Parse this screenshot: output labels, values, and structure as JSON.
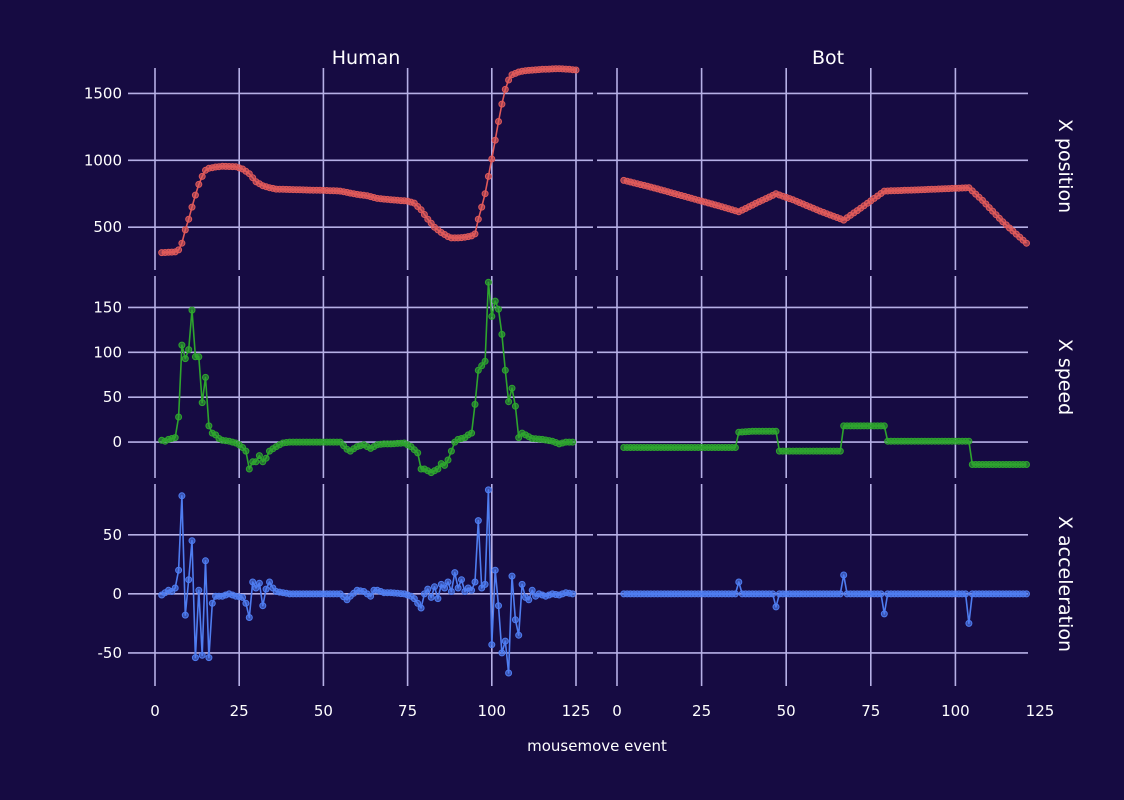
{
  "chart_data": {
    "type": "line",
    "xlabel": "mousemove event",
    "xlim": [
      0,
      127
    ],
    "x_ticks": [
      0,
      25,
      50,
      75,
      100,
      125
    ],
    "x_tick_labels": [
      "0",
      "25",
      "50",
      "75",
      "100",
      "125"
    ],
    "columns": [
      "Human",
      "Bot"
    ],
    "rows": [
      {
        "label": "X position",
        "color": "#e05a5a",
        "ylim": [
          180,
          1690
        ],
        "y_ticks": [
          500,
          1000,
          1500
        ],
        "y_tick_labels": [
          "500",
          "1000",
          "1500"
        ]
      },
      {
        "label": "X speed",
        "color": "#2ea52e",
        "ylim": [
          -40,
          185
        ],
        "y_ticks": [
          0,
          50,
          100,
          150
        ],
        "y_tick_labels": [
          "0",
          "50",
          "100",
          "150"
        ]
      },
      {
        "label": "X acceleration",
        "color": "#4f7df0",
        "ylim": [
          -78,
          93
        ],
        "y_ticks": [
          -50,
          0,
          50
        ],
        "y_tick_labels": [
          "-50",
          "0",
          "50"
        ]
      }
    ],
    "grid": true,
    "series": {
      "human_position": [
        [
          2,
          310
        ],
        [
          4,
          312
        ],
        [
          6,
          315
        ],
        [
          7,
          330
        ],
        [
          8,
          380
        ],
        [
          9,
          480
        ],
        [
          10,
          560
        ],
        [
          11,
          650
        ],
        [
          12,
          740
        ],
        [
          13,
          820
        ],
        [
          14,
          880
        ],
        [
          15,
          925
        ],
        [
          16,
          940
        ],
        [
          18,
          950
        ],
        [
          20,
          955
        ],
        [
          24,
          952
        ],
        [
          26,
          935
        ],
        [
          28,
          900
        ],
        [
          30,
          840
        ],
        [
          32,
          810
        ],
        [
          34,
          795
        ],
        [
          36,
          785
        ],
        [
          40,
          782
        ],
        [
          45,
          778
        ],
        [
          50,
          775
        ],
        [
          55,
          770
        ],
        [
          57,
          760
        ],
        [
          60,
          745
        ],
        [
          63,
          735
        ],
        [
          66,
          715
        ],
        [
          70,
          705
        ],
        [
          75,
          695
        ],
        [
          77,
          680
        ],
        [
          79,
          630
        ],
        [
          81,
          560
        ],
        [
          83,
          500
        ],
        [
          85,
          460
        ],
        [
          87,
          430
        ],
        [
          88,
          420
        ],
        [
          90,
          420
        ],
        [
          92,
          425
        ],
        [
          94,
          435
        ],
        [
          95,
          450
        ],
        [
          96,
          560
        ],
        [
          97,
          650
        ],
        [
          98,
          750
        ],
        [
          99,
          880
        ],
        [
          100,
          1010
        ],
        [
          101,
          1150
        ],
        [
          102,
          1290
        ],
        [
          103,
          1420
        ],
        [
          104,
          1530
        ],
        [
          105,
          1600
        ],
        [
          106,
          1640
        ],
        [
          108,
          1660
        ],
        [
          110,
          1670
        ],
        [
          115,
          1680
        ],
        [
          120,
          1685
        ],
        [
          123,
          1680
        ],
        [
          125,
          1675
        ]
      ],
      "bot_position": [
        [
          2,
          850
        ],
        [
          10,
          800
        ],
        [
          20,
          730
        ],
        [
          30,
          660
        ],
        [
          36,
          615
        ],
        [
          42,
          690
        ],
        [
          47,
          750
        ],
        [
          52,
          705
        ],
        [
          60,
          620
        ],
        [
          67,
          553
        ],
        [
          73,
          660
        ],
        [
          79,
          770
        ],
        [
          90,
          780
        ],
        [
          104,
          795
        ],
        [
          108,
          700
        ],
        [
          114,
          540
        ],
        [
          121,
          380
        ]
      ],
      "human_speed": [
        [
          2,
          2
        ],
        [
          3,
          1
        ],
        [
          4,
          3
        ],
        [
          5,
          4
        ],
        [
          6,
          5
        ],
        [
          7,
          28
        ],
        [
          8,
          108
        ],
        [
          9,
          93
        ],
        [
          10,
          103
        ],
        [
          11,
          147
        ],
        [
          12,
          95
        ],
        [
          13,
          95
        ],
        [
          14,
          44
        ],
        [
          15,
          72
        ],
        [
          16,
          18
        ],
        [
          17,
          10
        ],
        [
          18,
          8
        ],
        [
          19,
          4
        ],
        [
          20,
          2
        ],
        [
          22,
          1
        ],
        [
          24,
          -1
        ],
        [
          25,
          -3
        ],
        [
          26,
          -6
        ],
        [
          27,
          -10
        ],
        [
          28,
          -30
        ],
        [
          29,
          -22
        ],
        [
          30,
          -22
        ],
        [
          31,
          -15
        ],
        [
          32,
          -22
        ],
        [
          33,
          -18
        ],
        [
          34,
          -10
        ],
        [
          36,
          -5
        ],
        [
          38,
          -1
        ],
        [
          40,
          0
        ],
        [
          45,
          0
        ],
        [
          50,
          0
        ],
        [
          55,
          0
        ],
        [
          57,
          -8
        ],
        [
          58,
          -10
        ],
        [
          60,
          -5
        ],
        [
          62,
          -3
        ],
        [
          64,
          -7
        ],
        [
          66,
          -3
        ],
        [
          68,
          -2
        ],
        [
          70,
          -2
        ],
        [
          74,
          -1
        ],
        [
          76,
          -5
        ],
        [
          78,
          -12
        ],
        [
          79,
          -30
        ],
        [
          80,
          -30
        ],
        [
          82,
          -34
        ],
        [
          84,
          -30
        ],
        [
          85,
          -24
        ],
        [
          86,
          -26
        ],
        [
          87,
          -20
        ],
        [
          88,
          -10
        ],
        [
          89,
          0
        ],
        [
          90,
          3
        ],
        [
          92,
          5
        ],
        [
          93,
          8
        ],
        [
          94,
          10
        ],
        [
          95,
          42
        ],
        [
          96,
          80
        ],
        [
          97,
          85
        ],
        [
          98,
          90
        ],
        [
          99,
          178
        ],
        [
          100,
          140
        ],
        [
          101,
          157
        ],
        [
          102,
          148
        ],
        [
          103,
          120
        ],
        [
          104,
          80
        ],
        [
          105,
          45
        ],
        [
          106,
          60
        ],
        [
          107,
          40
        ],
        [
          108,
          5
        ],
        [
          109,
          10
        ],
        [
          110,
          8
        ],
        [
          112,
          4
        ],
        [
          115,
          3
        ],
        [
          118,
          1
        ],
        [
          120,
          -2
        ],
        [
          122,
          0
        ],
        [
          124,
          0
        ]
      ],
      "bot_speed": [
        [
          2,
          -6
        ],
        [
          10,
          -6
        ],
        [
          20,
          -6
        ],
        [
          30,
          -6
        ],
        [
          35,
          -6
        ],
        [
          36,
          11
        ],
        [
          40,
          12
        ],
        [
          47,
          12
        ],
        [
          48,
          -10
        ],
        [
          55,
          -10
        ],
        [
          60,
          -10
        ],
        [
          66,
          -10
        ],
        [
          67,
          18
        ],
        [
          72,
          18
        ],
        [
          79,
          18
        ],
        [
          80,
          1
        ],
        [
          90,
          1
        ],
        [
          104,
          1
        ],
        [
          105,
          -25
        ],
        [
          115,
          -25
        ],
        [
          121,
          -25
        ]
      ],
      "human_accel": [
        [
          2,
          -1
        ],
        [
          3,
          1
        ],
        [
          4,
          3
        ],
        [
          5,
          2
        ],
        [
          6,
          5
        ],
        [
          7,
          20
        ],
        [
          8,
          83
        ],
        [
          9,
          -18
        ],
        [
          10,
          12
        ],
        [
          11,
          45
        ],
        [
          12,
          -54
        ],
        [
          13,
          3
        ],
        [
          14,
          -52
        ],
        [
          15,
          28
        ],
        [
          16,
          -54
        ],
        [
          17,
          -8
        ],
        [
          18,
          -2
        ],
        [
          20,
          -2
        ],
        [
          22,
          0
        ],
        [
          24,
          -2
        ],
        [
          26,
          -3
        ],
        [
          27,
          -8
        ],
        [
          28,
          -20
        ],
        [
          29,
          10
        ],
        [
          30,
          5
        ],
        [
          31,
          9
        ],
        [
          32,
          -10
        ],
        [
          33,
          4
        ],
        [
          34,
          10
        ],
        [
          35,
          5
        ],
        [
          36,
          2
        ],
        [
          38,
          1
        ],
        [
          40,
          0
        ],
        [
          45,
          0
        ],
        [
          50,
          0
        ],
        [
          55,
          0
        ],
        [
          57,
          -5
        ],
        [
          58,
          -2
        ],
        [
          60,
          3
        ],
        [
          62,
          2
        ],
        [
          64,
          -2
        ],
        [
          65,
          3
        ],
        [
          66,
          3
        ],
        [
          68,
          1
        ],
        [
          70,
          1
        ],
        [
          74,
          0
        ],
        [
          76,
          -2
        ],
        [
          77,
          -4
        ],
        [
          78,
          -8
        ],
        [
          79,
          -12
        ],
        [
          80,
          0
        ],
        [
          81,
          4
        ],
        [
          82,
          -3
        ],
        [
          83,
          6
        ],
        [
          84,
          -4
        ],
        [
          85,
          8
        ],
        [
          86,
          5
        ],
        [
          87,
          10
        ],
        [
          88,
          2
        ],
        [
          89,
          18
        ],
        [
          90,
          5
        ],
        [
          91,
          12
        ],
        [
          92,
          2
        ],
        [
          93,
          5
        ],
        [
          94,
          3
        ],
        [
          95,
          10
        ],
        [
          96,
          62
        ],
        [
          97,
          5
        ],
        [
          98,
          8
        ],
        [
          99,
          88
        ],
        [
          100,
          -43
        ],
        [
          101,
          20
        ],
        [
          102,
          -10
        ],
        [
          103,
          -50
        ],
        [
          104,
          -40
        ],
        [
          105,
          -67
        ],
        [
          106,
          15
        ],
        [
          107,
          -22
        ],
        [
          108,
          -35
        ],
        [
          109,
          8
        ],
        [
          110,
          -3
        ],
        [
          111,
          -5
        ],
        [
          112,
          3
        ],
        [
          113,
          -2
        ],
        [
          114,
          0
        ],
        [
          116,
          -2
        ],
        [
          118,
          0
        ],
        [
          120,
          -1
        ],
        [
          122,
          1
        ],
        [
          124,
          0
        ]
      ],
      "bot_accel": [
        [
          2,
          0
        ],
        [
          10,
          0
        ],
        [
          20,
          0
        ],
        [
          30,
          0
        ],
        [
          35,
          0
        ],
        [
          36,
          10
        ],
        [
          37,
          0
        ],
        [
          40,
          0
        ],
        [
          46,
          0
        ],
        [
          47,
          -11
        ],
        [
          48,
          0
        ],
        [
          55,
          0
        ],
        [
          60,
          0
        ],
        [
          66,
          0
        ],
        [
          67,
          16
        ],
        [
          68,
          0
        ],
        [
          72,
          0
        ],
        [
          78,
          0
        ],
        [
          79,
          -17
        ],
        [
          80,
          0
        ],
        [
          90,
          0
        ],
        [
          103,
          0
        ],
        [
          104,
          -25
        ],
        [
          105,
          0
        ],
        [
          115,
          0
        ],
        [
          121,
          0
        ]
      ]
    }
  }
}
